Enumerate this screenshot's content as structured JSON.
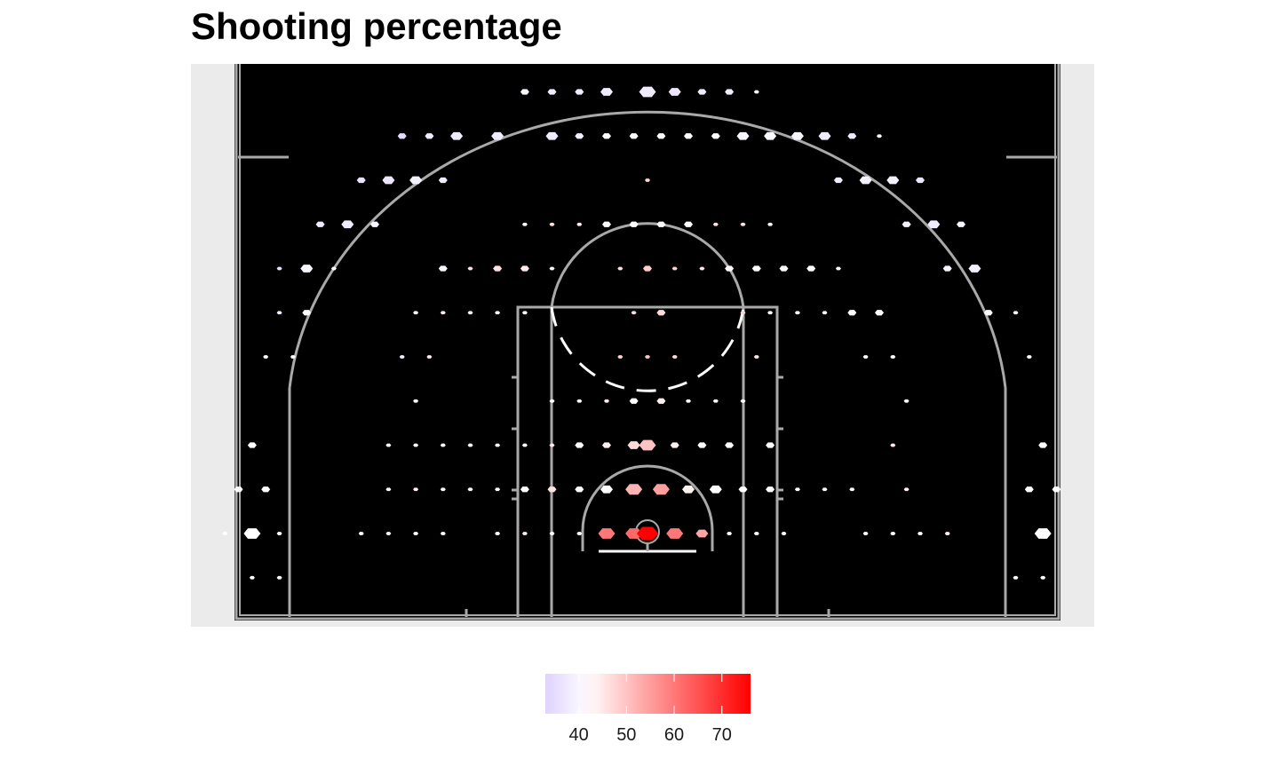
{
  "chart_data": {
    "type": "heatmap",
    "title": "Shooting percentage",
    "subtitle": "",
    "legend": {
      "position": "bottom",
      "ticks": [
        40,
        50,
        60,
        70
      ],
      "range": [
        33,
        76
      ],
      "colors": {
        "low": "#e0d2ff",
        "mid": "#ffffff",
        "high": "#ff0000"
      },
      "midpoint": 42
    },
    "background": "#ebebeb",
    "court_color": "#000000",
    "line_color": "#a9a9a9",
    "bins": [
      {
        "x": -4.5,
        "y": 37.5,
        "size": 2,
        "pct": 40
      },
      {
        "x": -3.5,
        "y": 37.5,
        "size": 2,
        "pct": 38
      },
      {
        "x": -2.5,
        "y": 37.5,
        "size": 2,
        "pct": 38
      },
      {
        "x": -1.5,
        "y": 37.5,
        "size": 3,
        "pct": 38
      },
      {
        "x": 0,
        "y": 37.5,
        "size": 4,
        "pct": 38
      },
      {
        "x": 1,
        "y": 37.5,
        "size": 3,
        "pct": 37
      },
      {
        "x": 2,
        "y": 37.5,
        "size": 2,
        "pct": 38
      },
      {
        "x": 3,
        "y": 37.5,
        "size": 2,
        "pct": 38
      },
      {
        "x": 4,
        "y": 37.5,
        "size": 1,
        "pct": 42
      },
      {
        "x": -9,
        "y": 32.5,
        "size": 2,
        "pct": 35
      },
      {
        "x": -8,
        "y": 32.5,
        "size": 2,
        "pct": 38
      },
      {
        "x": -7,
        "y": 32.5,
        "size": 3,
        "pct": 38
      },
      {
        "x": -5.5,
        "y": 32.5,
        "size": 3,
        "pct": 38
      },
      {
        "x": -3.5,
        "y": 32.5,
        "size": 3,
        "pct": 38
      },
      {
        "x": -2.5,
        "y": 32.5,
        "size": 2,
        "pct": 39
      },
      {
        "x": -1.5,
        "y": 32.5,
        "size": 2,
        "pct": 42
      },
      {
        "x": -0.5,
        "y": 32.5,
        "size": 2,
        "pct": 42
      },
      {
        "x": 0.5,
        "y": 32.5,
        "size": 2,
        "pct": 42
      },
      {
        "x": 1.5,
        "y": 32.5,
        "size": 2,
        "pct": 42
      },
      {
        "x": 2.5,
        "y": 32.5,
        "size": 2,
        "pct": 42
      },
      {
        "x": 3.5,
        "y": 32.5,
        "size": 3,
        "pct": 40
      },
      {
        "x": 4.5,
        "y": 32.5,
        "size": 3,
        "pct": 41
      },
      {
        "x": 5.5,
        "y": 32.5,
        "size": 3,
        "pct": 40
      },
      {
        "x": 6.5,
        "y": 32.5,
        "size": 3,
        "pct": 38
      },
      {
        "x": 7.5,
        "y": 32.5,
        "size": 2,
        "pct": 38
      },
      {
        "x": 8.5,
        "y": 32.5,
        "size": 1,
        "pct": 41
      },
      {
        "x": -10.5,
        "y": 27.5,
        "size": 2,
        "pct": 36
      },
      {
        "x": -9.5,
        "y": 27.5,
        "size": 3,
        "pct": 37
      },
      {
        "x": -8.5,
        "y": 27.5,
        "size": 3,
        "pct": 39
      },
      {
        "x": -7.5,
        "y": 27.5,
        "size": 2,
        "pct": 38
      },
      {
        "x": 0,
        "y": 27.5,
        "size": 1,
        "pct": 48
      },
      {
        "x": 7,
        "y": 27.5,
        "size": 2,
        "pct": 38
      },
      {
        "x": 8,
        "y": 27.5,
        "size": 3,
        "pct": 39
      },
      {
        "x": 9,
        "y": 27.5,
        "size": 3,
        "pct": 39
      },
      {
        "x": 10,
        "y": 27.5,
        "size": 2,
        "pct": 37
      },
      {
        "x": -12,
        "y": 22.5,
        "size": 2,
        "pct": 38
      },
      {
        "x": -11,
        "y": 22.5,
        "size": 3,
        "pct": 38
      },
      {
        "x": -10,
        "y": 22.5,
        "size": 2,
        "pct": 40
      },
      {
        "x": -4.5,
        "y": 22.5,
        "size": 1,
        "pct": 42
      },
      {
        "x": -3.5,
        "y": 22.5,
        "size": 1,
        "pct": 46
      },
      {
        "x": -2.5,
        "y": 22.5,
        "size": 1,
        "pct": 44
      },
      {
        "x": -1.5,
        "y": 22.5,
        "size": 2,
        "pct": 42
      },
      {
        "x": -0.5,
        "y": 22.5,
        "size": 2,
        "pct": 42
      },
      {
        "x": 0.5,
        "y": 22.5,
        "size": 2,
        "pct": 42
      },
      {
        "x": 1.5,
        "y": 22.5,
        "size": 2,
        "pct": 42
      },
      {
        "x": 2.5,
        "y": 22.5,
        "size": 1,
        "pct": 46
      },
      {
        "x": 3.5,
        "y": 22.5,
        "size": 1,
        "pct": 46
      },
      {
        "x": 4.5,
        "y": 22.5,
        "size": 1,
        "pct": 43
      },
      {
        "x": 9.5,
        "y": 22.5,
        "size": 2,
        "pct": 39
      },
      {
        "x": 10.5,
        "y": 22.5,
        "size": 3,
        "pct": 38
      },
      {
        "x": 11.5,
        "y": 22.5,
        "size": 2,
        "pct": 40
      },
      {
        "x": -13.5,
        "y": 17.5,
        "size": 1,
        "pct": 36
      },
      {
        "x": -12.5,
        "y": 17.5,
        "size": 3,
        "pct": 40
      },
      {
        "x": -11.5,
        "y": 17.5,
        "size": 1,
        "pct": 40
      },
      {
        "x": -7.5,
        "y": 17.5,
        "size": 2,
        "pct": 40
      },
      {
        "x": -6.5,
        "y": 17.5,
        "size": 1,
        "pct": 46
      },
      {
        "x": -5.5,
        "y": 17.5,
        "size": 2,
        "pct": 46
      },
      {
        "x": -4.5,
        "y": 17.5,
        "size": 2,
        "pct": 45
      },
      {
        "x": -3.5,
        "y": 17.5,
        "size": 1,
        "pct": 42
      },
      {
        "x": -1,
        "y": 17.5,
        "size": 1,
        "pct": 46
      },
      {
        "x": 0,
        "y": 17.5,
        "size": 2,
        "pct": 49
      },
      {
        "x": 1,
        "y": 17.5,
        "size": 1,
        "pct": 48
      },
      {
        "x": 2,
        "y": 17.5,
        "size": 1,
        "pct": 45
      },
      {
        "x": 3,
        "y": 17.5,
        "size": 2,
        "pct": 43
      },
      {
        "x": 4,
        "y": 17.5,
        "size": 2,
        "pct": 42
      },
      {
        "x": 5,
        "y": 17.5,
        "size": 2,
        "pct": 41
      },
      {
        "x": 6,
        "y": 17.5,
        "size": 2,
        "pct": 42
      },
      {
        "x": 7,
        "y": 17.5,
        "size": 1,
        "pct": 42
      },
      {
        "x": 11,
        "y": 17.5,
        "size": 2,
        "pct": 40
      },
      {
        "x": 12,
        "y": 17.5,
        "size": 3,
        "pct": 39
      },
      {
        "x": -13.5,
        "y": 12.5,
        "size": 1,
        "pct": 38
      },
      {
        "x": -12.5,
        "y": 12.5,
        "size": 2,
        "pct": 41
      },
      {
        "x": -8.5,
        "y": 12.5,
        "size": 1,
        "pct": 43
      },
      {
        "x": -7.5,
        "y": 12.5,
        "size": 1,
        "pct": 45
      },
      {
        "x": -6.5,
        "y": 12.5,
        "size": 1,
        "pct": 44
      },
      {
        "x": -5.5,
        "y": 12.5,
        "size": 1,
        "pct": 43
      },
      {
        "x": -4.5,
        "y": 12.5,
        "size": 1,
        "pct": 43
      },
      {
        "x": -0.5,
        "y": 12.5,
        "size": 1,
        "pct": 47
      },
      {
        "x": 0.5,
        "y": 12.5,
        "size": 2,
        "pct": 47
      },
      {
        "x": 3.5,
        "y": 12.5,
        "size": 1,
        "pct": 48
      },
      {
        "x": 4.5,
        "y": 12.5,
        "size": 1,
        "pct": 42
      },
      {
        "x": 5.5,
        "y": 12.5,
        "size": 1,
        "pct": 43
      },
      {
        "x": 6.5,
        "y": 12.5,
        "size": 1,
        "pct": 42
      },
      {
        "x": 7.5,
        "y": 12.5,
        "size": 2,
        "pct": 42
      },
      {
        "x": 8.5,
        "y": 12.5,
        "size": 2,
        "pct": 42
      },
      {
        "x": 12.5,
        "y": 12.5,
        "size": 2,
        "pct": 41
      },
      {
        "x": 13.5,
        "y": 12.5,
        "size": 1,
        "pct": 41
      },
      {
        "x": -14,
        "y": 7.5,
        "size": 1,
        "pct": 42
      },
      {
        "x": -13,
        "y": 7.5,
        "size": 1,
        "pct": 42
      },
      {
        "x": -9,
        "y": 7.5,
        "size": 1,
        "pct": 38
      },
      {
        "x": -8,
        "y": 7.5,
        "size": 1,
        "pct": 45
      },
      {
        "x": -1,
        "y": 7.5,
        "size": 1,
        "pct": 48
      },
      {
        "x": 0,
        "y": 7.5,
        "size": 1,
        "pct": 50
      },
      {
        "x": 1,
        "y": 7.5,
        "size": 1,
        "pct": 47
      },
      {
        "x": 4,
        "y": 7.5,
        "size": 1,
        "pct": 46
      },
      {
        "x": 8,
        "y": 7.5,
        "size": 1,
        "pct": 41
      },
      {
        "x": 9,
        "y": 7.5,
        "size": 1,
        "pct": 42
      },
      {
        "x": 14,
        "y": 7.5,
        "size": 1,
        "pct": 41
      },
      {
        "x": -8.5,
        "y": 2.5,
        "size": 1,
        "pct": 42
      },
      {
        "x": -3.5,
        "y": 2.5,
        "size": 1,
        "pct": 42
      },
      {
        "x": -2.5,
        "y": 2.5,
        "size": 1,
        "pct": 42
      },
      {
        "x": -1.5,
        "y": 2.5,
        "size": 1,
        "pct": 45
      },
      {
        "x": -0.5,
        "y": 2.5,
        "size": 2,
        "pct": 42
      },
      {
        "x": 0.5,
        "y": 2.5,
        "size": 2,
        "pct": 44
      },
      {
        "x": 1.5,
        "y": 2.5,
        "size": 1,
        "pct": 42
      },
      {
        "x": 2.5,
        "y": 2.5,
        "size": 1,
        "pct": 42
      },
      {
        "x": 3.5,
        "y": 2.5,
        "size": 1,
        "pct": 40
      },
      {
        "x": 9.5,
        "y": 2.5,
        "size": 1,
        "pct": 42
      },
      {
        "x": -14.5,
        "y": -2.5,
        "size": 2,
        "pct": 42
      },
      {
        "x": -9.5,
        "y": -2.5,
        "size": 1,
        "pct": 42
      },
      {
        "x": -8.5,
        "y": -2.5,
        "size": 1,
        "pct": 42
      },
      {
        "x": -7.5,
        "y": -2.5,
        "size": 1,
        "pct": 42
      },
      {
        "x": -6.5,
        "y": -2.5,
        "size": 1,
        "pct": 42
      },
      {
        "x": -5.5,
        "y": -2.5,
        "size": 1,
        "pct": 40
      },
      {
        "x": -4.5,
        "y": -2.5,
        "size": 1,
        "pct": 42
      },
      {
        "x": -3.5,
        "y": -2.5,
        "size": 1,
        "pct": 45
      },
      {
        "x": -2.5,
        "y": -2.5,
        "size": 2,
        "pct": 42
      },
      {
        "x": -1.5,
        "y": -2.5,
        "size": 2,
        "pct": 44
      },
      {
        "x": -0.5,
        "y": -2.5,
        "size": 3,
        "pct": 47
      },
      {
        "x": 0,
        "y": -2.5,
        "size": 4,
        "pct": 50
      },
      {
        "x": 1,
        "y": -2.5,
        "size": 2,
        "pct": 44
      },
      {
        "x": 2,
        "y": -2.5,
        "size": 2,
        "pct": 42
      },
      {
        "x": 3,
        "y": -2.5,
        "size": 2,
        "pct": 42
      },
      {
        "x": 4.5,
        "y": -2.5,
        "size": 2,
        "pct": 42
      },
      {
        "x": 9,
        "y": -2.5,
        "size": 1,
        "pct": 45
      },
      {
        "x": 14.5,
        "y": -2.5,
        "size": 2,
        "pct": 42
      },
      {
        "x": -15,
        "y": -7.5,
        "size": 2,
        "pct": 42
      },
      {
        "x": -14,
        "y": -7.5,
        "size": 2,
        "pct": 42
      },
      {
        "x": -9.5,
        "y": -7.5,
        "size": 1,
        "pct": 43
      },
      {
        "x": -8.5,
        "y": -7.5,
        "size": 1,
        "pct": 44
      },
      {
        "x": -7.5,
        "y": -7.5,
        "size": 1,
        "pct": 42
      },
      {
        "x": -6.5,
        "y": -7.5,
        "size": 1,
        "pct": 42
      },
      {
        "x": -5.5,
        "y": -7.5,
        "size": 1,
        "pct": 42
      },
      {
        "x": -4.5,
        "y": -7.5,
        "size": 2,
        "pct": 42
      },
      {
        "x": -3.5,
        "y": -7.5,
        "size": 2,
        "pct": 46
      },
      {
        "x": -2.5,
        "y": -7.5,
        "size": 2,
        "pct": 42
      },
      {
        "x": -1.5,
        "y": -7.5,
        "size": 3,
        "pct": 42
      },
      {
        "x": -0.5,
        "y": -7.5,
        "size": 4,
        "pct": 52
      },
      {
        "x": 0.5,
        "y": -7.5,
        "size": 4,
        "pct": 55
      },
      {
        "x": 1.5,
        "y": -7.5,
        "size": 3,
        "pct": 44
      },
      {
        "x": 2.5,
        "y": -7.5,
        "size": 3,
        "pct": 42
      },
      {
        "x": 3.5,
        "y": -7.5,
        "size": 2,
        "pct": 42
      },
      {
        "x": 4.5,
        "y": -7.5,
        "size": 2,
        "pct": 42
      },
      {
        "x": 5.5,
        "y": -7.5,
        "size": 1,
        "pct": 42
      },
      {
        "x": 6.5,
        "y": -7.5,
        "size": 1,
        "pct": 42
      },
      {
        "x": 7.5,
        "y": -7.5,
        "size": 1,
        "pct": 42
      },
      {
        "x": 9.5,
        "y": -7.5,
        "size": 1,
        "pct": 44
      },
      {
        "x": 14,
        "y": -7.5,
        "size": 2,
        "pct": 42
      },
      {
        "x": 15,
        "y": -7.5,
        "size": 2,
        "pct": 42
      },
      {
        "x": -15.5,
        "y": -12.5,
        "size": 1,
        "pct": 42
      },
      {
        "x": -14.5,
        "y": -12.5,
        "size": 4,
        "pct": 42
      },
      {
        "x": -13.5,
        "y": -12.5,
        "size": 1,
        "pct": 42
      },
      {
        "x": -10.5,
        "y": -12.5,
        "size": 1,
        "pct": 42
      },
      {
        "x": -9.5,
        "y": -12.5,
        "size": 1,
        "pct": 44
      },
      {
        "x": -8.5,
        "y": -12.5,
        "size": 1,
        "pct": 42
      },
      {
        "x": -7.5,
        "y": -12.5,
        "size": 1,
        "pct": 43
      },
      {
        "x": -5.5,
        "y": -12.5,
        "size": 1,
        "pct": 42
      },
      {
        "x": -4.5,
        "y": -12.5,
        "size": 1,
        "pct": 45
      },
      {
        "x": -3.5,
        "y": -12.5,
        "size": 1,
        "pct": 42
      },
      {
        "x": -2.5,
        "y": -12.5,
        "size": 1,
        "pct": 42
      },
      {
        "x": -1.5,
        "y": -12.5,
        "size": 4,
        "pct": 60
      },
      {
        "x": -0.5,
        "y": -12.5,
        "size": 4,
        "pct": 62
      },
      {
        "x": 0,
        "y": -12.5,
        "size": 5,
        "pct": 76
      },
      {
        "x": 1,
        "y": -12.5,
        "size": 4,
        "pct": 60
      },
      {
        "x": 2,
        "y": -12.5,
        "size": 3,
        "pct": 54
      },
      {
        "x": 3,
        "y": -12.5,
        "size": 1,
        "pct": 42
      },
      {
        "x": 4,
        "y": -12.5,
        "size": 1,
        "pct": 42
      },
      {
        "x": 5,
        "y": -12.5,
        "size": 1,
        "pct": 42
      },
      {
        "x": 8,
        "y": -12.5,
        "size": 1,
        "pct": 42
      },
      {
        "x": 9,
        "y": -12.5,
        "size": 1,
        "pct": 42
      },
      {
        "x": 10,
        "y": -12.5,
        "size": 1,
        "pct": 42
      },
      {
        "x": 11,
        "y": -12.5,
        "size": 1,
        "pct": 44
      },
      {
        "x": 14.5,
        "y": -12.5,
        "size": 4,
        "pct": 42
      },
      {
        "x": -14.5,
        "y": -17.5,
        "size": 1,
        "pct": 42
      },
      {
        "x": -13.5,
        "y": -17.5,
        "size": 1,
        "pct": 42
      },
      {
        "x": 13.5,
        "y": -17.5,
        "size": 1,
        "pct": 42
      },
      {
        "x": 14.5,
        "y": -17.5,
        "size": 1,
        "pct": 42
      }
    ]
  }
}
